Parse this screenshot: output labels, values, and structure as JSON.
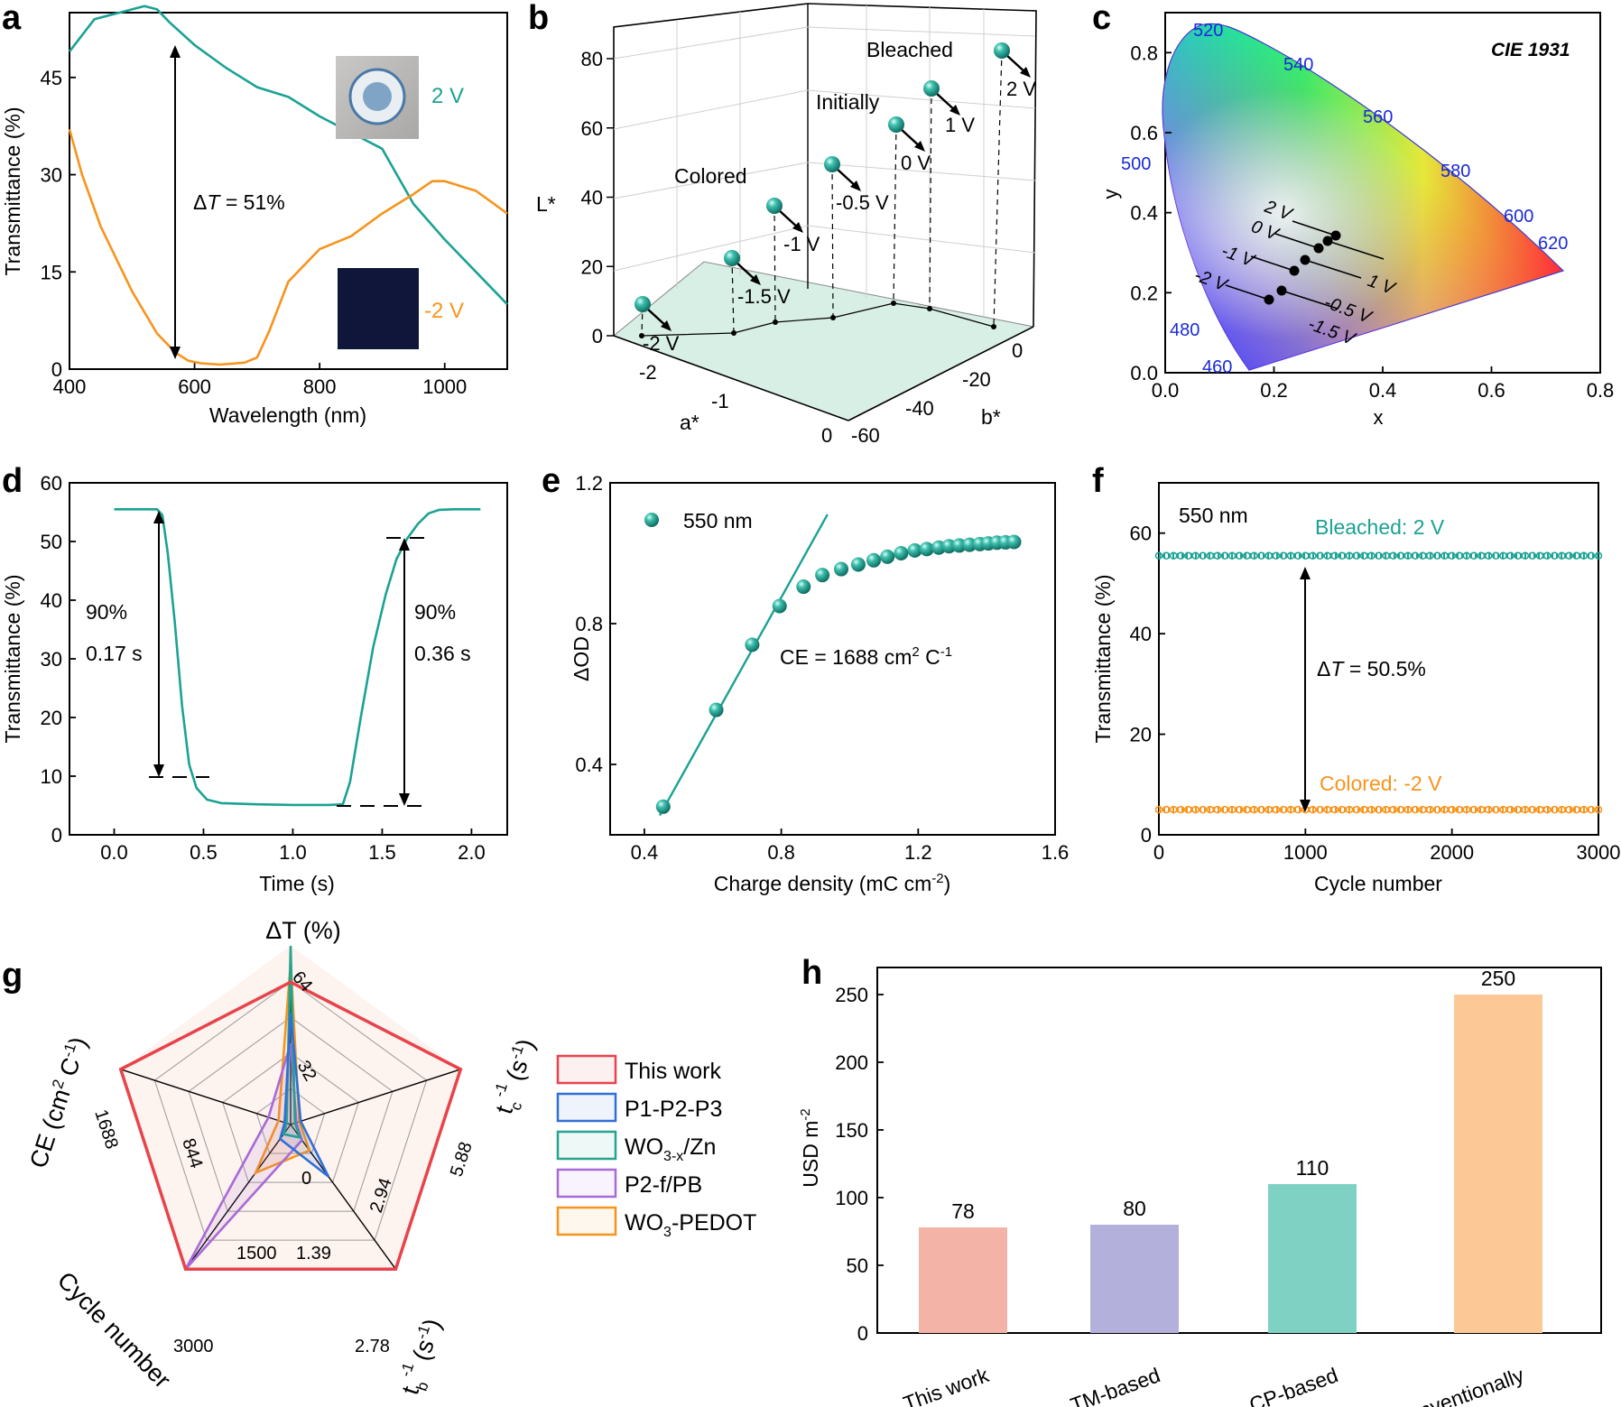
{
  "colors": {
    "teal": "#1ba293",
    "orange": "#f7941d",
    "red": "#e8434b",
    "blue": "#2f6fd6",
    "purple": "#a86ad6",
    "greenLeg": "#28a48e",
    "ball": "#22a093",
    "bar_this": "#f3b3a6",
    "bar_tm": "#b4b0dc",
    "bar_cp": "#7fd1c3",
    "bar_conv": "#fcc896",
    "cie_label": "#1a2ad6"
  },
  "chart_data": [
    {
      "id": "a",
      "panel_label": "a",
      "type": "line",
      "xlabel": "Wavelength (nm)",
      "ylabel": "Transmittance (%)",
      "xlim": [
        400,
        1100
      ],
      "ylim": [
        0,
        55
      ],
      "xticks": [
        400,
        600,
        800,
        1000
      ],
      "yticks": [
        0,
        15,
        30,
        45
      ],
      "series": [
        {
          "name": "2 V",
          "color": "teal",
          "x": [
            400,
            440,
            480,
            520,
            540,
            560,
            600,
            650,
            700,
            750,
            800,
            850,
            900,
            950,
            1000,
            1050,
            1100
          ],
          "y": [
            49,
            54,
            55,
            56,
            55.5,
            53.5,
            50,
            46.5,
            43.5,
            42,
            39,
            36.5,
            34,
            25.5,
            20,
            15,
            10
          ]
        },
        {
          "name": "-2 V",
          "color": "orange",
          "x": [
            400,
            420,
            450,
            500,
            540,
            570,
            590,
            610,
            640,
            680,
            700,
            720,
            750,
            800,
            850,
            900,
            950,
            980,
            1000,
            1050,
            1100
          ],
          "y": [
            37,
            30,
            22,
            12,
            5.5,
            2.5,
            1.3,
            0.9,
            0.7,
            1.0,
            1.8,
            6,
            13.5,
            18.5,
            20.5,
            24,
            27,
            29,
            29,
            27.5,
            24
          ]
        }
      ],
      "annotations": {
        "delta_prefix": "Δ",
        "delta_var": "T",
        "delta_suffix": " = 51%",
        "label_2v": "2 V",
        "label_m2v": "-2 V"
      }
    },
    {
      "id": "b",
      "panel_label": "b",
      "type": "scatter3d",
      "zlabel": "L*",
      "xlabel": "a*",
      "ylabel": "b*",
      "zticks": [
        0,
        20,
        40,
        60,
        80
      ],
      "xticks": [
        -2,
        -1,
        0
      ],
      "yticks": [
        0,
        -20,
        -40,
        -60
      ],
      "points": [
        {
          "label": "-2 V",
          "L": 12,
          "a": -2.4,
          "b": -3
        },
        {
          "label": "-1.5 V",
          "L": 22,
          "a": -1.95,
          "b": -10
        },
        {
          "label": "-1 V",
          "L": 38,
          "a": -1.4,
          "b": -17
        },
        {
          "label": "-0.5 V",
          "L": 50,
          "a": -0.7,
          "b": -25
        },
        {
          "label": "0 V",
          "L": 62,
          "a": 0.0,
          "b": -28
        },
        {
          "label": "1 V",
          "L": 72,
          "a": 0.3,
          "b": -20
        },
        {
          "label": "2 V",
          "L": 80,
          "a": 0.6,
          "b": -2
        }
      ],
      "annotations": {
        "colored": "Colored",
        "initially": "Initially",
        "bleached": "Bleached"
      }
    },
    {
      "id": "c",
      "panel_label": "c",
      "type": "scatter",
      "title": "CIE 1931",
      "xlabel": "x",
      "ylabel": "y",
      "xlim": [
        0,
        0.8
      ],
      "ylim": [
        0,
        0.9
      ],
      "xticks": [
        0.0,
        0.2,
        0.4,
        0.6,
        0.8
      ],
      "yticks": [
        0.0,
        0.2,
        0.4,
        0.6,
        0.8
      ],
      "locus_labels": [
        "460",
        "480",
        "500",
        "520",
        "540",
        "560",
        "580",
        "600",
        "620"
      ],
      "points": [
        {
          "label": "-2 V",
          "x": 0.19,
          "y": 0.19
        },
        {
          "label": "-1.5 V",
          "x": 0.21,
          "y": 0.21
        },
        {
          "label": "-1 V",
          "x": 0.24,
          "y": 0.255
        },
        {
          "label": "-0.5 V",
          "x": 0.26,
          "y": 0.285
        },
        {
          "label": "0 V",
          "x": 0.28,
          "y": 0.31
        },
        {
          "label": "1 V",
          "x": 0.3,
          "y": 0.325
        },
        {
          "label": "2 V",
          "x": 0.315,
          "y": 0.345
        }
      ]
    },
    {
      "id": "d",
      "panel_label": "d",
      "type": "line",
      "xlabel": "Time (s)",
      "ylabel": "Transmittance (%)",
      "xlim": [
        -0.25,
        2.2
      ],
      "ylim": [
        0,
        60
      ],
      "xticks": [
        0.0,
        0.5,
        1.0,
        1.5,
        2.0
      ],
      "yticks": [
        0,
        10,
        20,
        30,
        40,
        50,
        60
      ],
      "series": [
        {
          "name": "response",
          "color": "teal",
          "x": [
            0,
            0.24,
            0.27,
            0.3,
            0.34,
            0.38,
            0.42,
            0.46,
            0.52,
            0.6,
            0.8,
            1.0,
            1.2,
            1.28,
            1.32,
            1.38,
            1.45,
            1.52,
            1.58,
            1.64,
            1.7,
            1.76,
            1.82,
            1.9,
            2.05
          ],
          "y": [
            55.5,
            55.5,
            54.5,
            48,
            36,
            22,
            12,
            8,
            6,
            5.4,
            5.2,
            5.1,
            5.1,
            5.2,
            9,
            20,
            32,
            41,
            47,
            50.5,
            53,
            54.8,
            55.4,
            55.5,
            55.5
          ]
        }
      ],
      "annotations": {
        "left_pct": "90%",
        "left_time": "0.17 s",
        "right_pct": "90%",
        "right_time": "0.36 s"
      }
    },
    {
      "id": "e",
      "panel_label": "e",
      "type": "scatter",
      "xlabel": "Charge density (mC cm",
      "xlabel_sup": "-2",
      "ylabel": "ΔOD",
      "xlim": [
        0.3,
        1.6
      ],
      "ylim": [
        0.2,
        1.2
      ],
      "xticks": [
        0.4,
        0.8,
        1.2,
        1.6
      ],
      "yticks": [
        0.4,
        0.8,
        1.2
      ],
      "legend": "550 nm",
      "x": [
        0.455,
        0.61,
        0.715,
        0.795,
        0.865,
        0.92,
        0.975,
        1.025,
        1.07,
        1.11,
        1.15,
        1.19,
        1.225,
        1.26,
        1.29,
        1.32,
        1.35,
        1.38,
        1.405,
        1.43,
        1.455,
        1.48
      ],
      "y": [
        0.28,
        0.555,
        0.74,
        0.85,
        0.905,
        0.938,
        0.955,
        0.968,
        0.98,
        0.99,
        1.0,
        1.008,
        1.012,
        1.016,
        1.02,
        1.022,
        1.024,
        1.026,
        1.028,
        1.03,
        1.031,
        1.032
      ],
      "fit": {
        "x": [
          0.445,
          0.935
        ],
        "y": [
          0.255,
          1.11
        ]
      },
      "annotation": {
        "prefix": "CE = 1688 cm",
        "sup1": "2",
        "mid": " C",
        "sup2": "-1"
      }
    },
    {
      "id": "f",
      "panel_label": "f",
      "type": "scatter",
      "xlabel": "Cycle number",
      "ylabel": "Transmittance (%)",
      "xlim": [
        0,
        3000
      ],
      "ylim": [
        0,
        70
      ],
      "xticks": [
        0,
        1000,
        2000,
        3000
      ],
      "yticks": [
        0,
        20,
        40,
        60
      ],
      "series": [
        {
          "name": "Bleached: 2 V",
          "color": "teal",
          "value": 55.5
        },
        {
          "name": "Colored:  -2 V",
          "color": "orange",
          "value": 5.0
        }
      ],
      "annotation": {
        "wavelength": "550 nm",
        "delta_prefix": "Δ",
        "delta_var": "T",
        "delta_suffix": " = 50.5%"
      }
    },
    {
      "id": "g",
      "panel_label": "g",
      "type": "radar",
      "axes": [
        {
          "name": "ΔT (%)",
          "max": 64,
          "tick_mid": "32",
          "tick_max": "64",
          "tick_zero": "0"
        },
        {
          "name": "t",
          "sub": "c",
          "sup": "-1",
          "unit": " (s",
          "unit_sup": "-1",
          "unit_end": ")",
          "max": 5.88,
          "tick_mid": "2.94",
          "tick_max": "5.88"
        },
        {
          "name": "t",
          "sub": "b",
          "sup": "-1",
          "unit": " (s",
          "unit_sup": "-1",
          "unit_end": ")",
          "max": 2.78,
          "tick_mid": "1.39",
          "tick_max": "2.78"
        },
        {
          "name": "Cycle number",
          "max": 3000,
          "tick_mid": "1500",
          "tick_max": "3000"
        },
        {
          "name": "CE (cm",
          "sup": "2",
          "mid": " C",
          "sup2": "-1",
          "end": ")",
          "max": 1688,
          "tick_mid": "844",
          "tick_max": "1688"
        }
      ],
      "series": [
        {
          "name": "This work",
          "color": "red",
          "values": [
            51,
            5.88,
            2.78,
            3000,
            1688
          ]
        },
        {
          "name": "P1-P2-P3",
          "color": "blue",
          "values": [
            40,
            0.35,
            1.0,
            300,
            60
          ]
        },
        {
          "name": "WO3-x/Zn",
          "color": "greenLeg",
          "values": [
            64,
            0.15,
            0.25,
            200,
            40
          ]
        },
        {
          "name": "P2-f/PB",
          "color": "purple",
          "values": [
            29,
            0.2,
            0.3,
            3000,
            220
          ]
        },
        {
          "name": "WO3-PEDOT",
          "color": "orange",
          "values": [
            58,
            0.3,
            0.5,
            1000,
            120
          ]
        }
      ],
      "legend": [
        {
          "main": "This work",
          "sub": "",
          "end": ""
        },
        {
          "main": "P1-P2-P3",
          "sub": "",
          "end": ""
        },
        {
          "main": "WO",
          "sub": "3-x",
          "end": "/Zn"
        },
        {
          "main": "P2-f/PB",
          "sub": "",
          "end": ""
        },
        {
          "main": "WO",
          "sub": "3",
          "end": "-PEDOT"
        }
      ]
    },
    {
      "id": "h",
      "panel_label": "h",
      "type": "bar",
      "ylabel": "USD m",
      "ylabel_sup": "-2",
      "ylim": [
        0,
        270
      ],
      "yticks": [
        0,
        50,
        100,
        150,
        200,
        250
      ],
      "categories": [
        "This work",
        "TM-based",
        "CP-based",
        "Conventionally"
      ],
      "values": [
        78,
        80,
        110,
        250
      ],
      "value_labels": [
        "78",
        "80",
        "110",
        "250"
      ],
      "colors": [
        "bar_this",
        "bar_tm",
        "bar_cp",
        "bar_conv"
      ]
    }
  ]
}
